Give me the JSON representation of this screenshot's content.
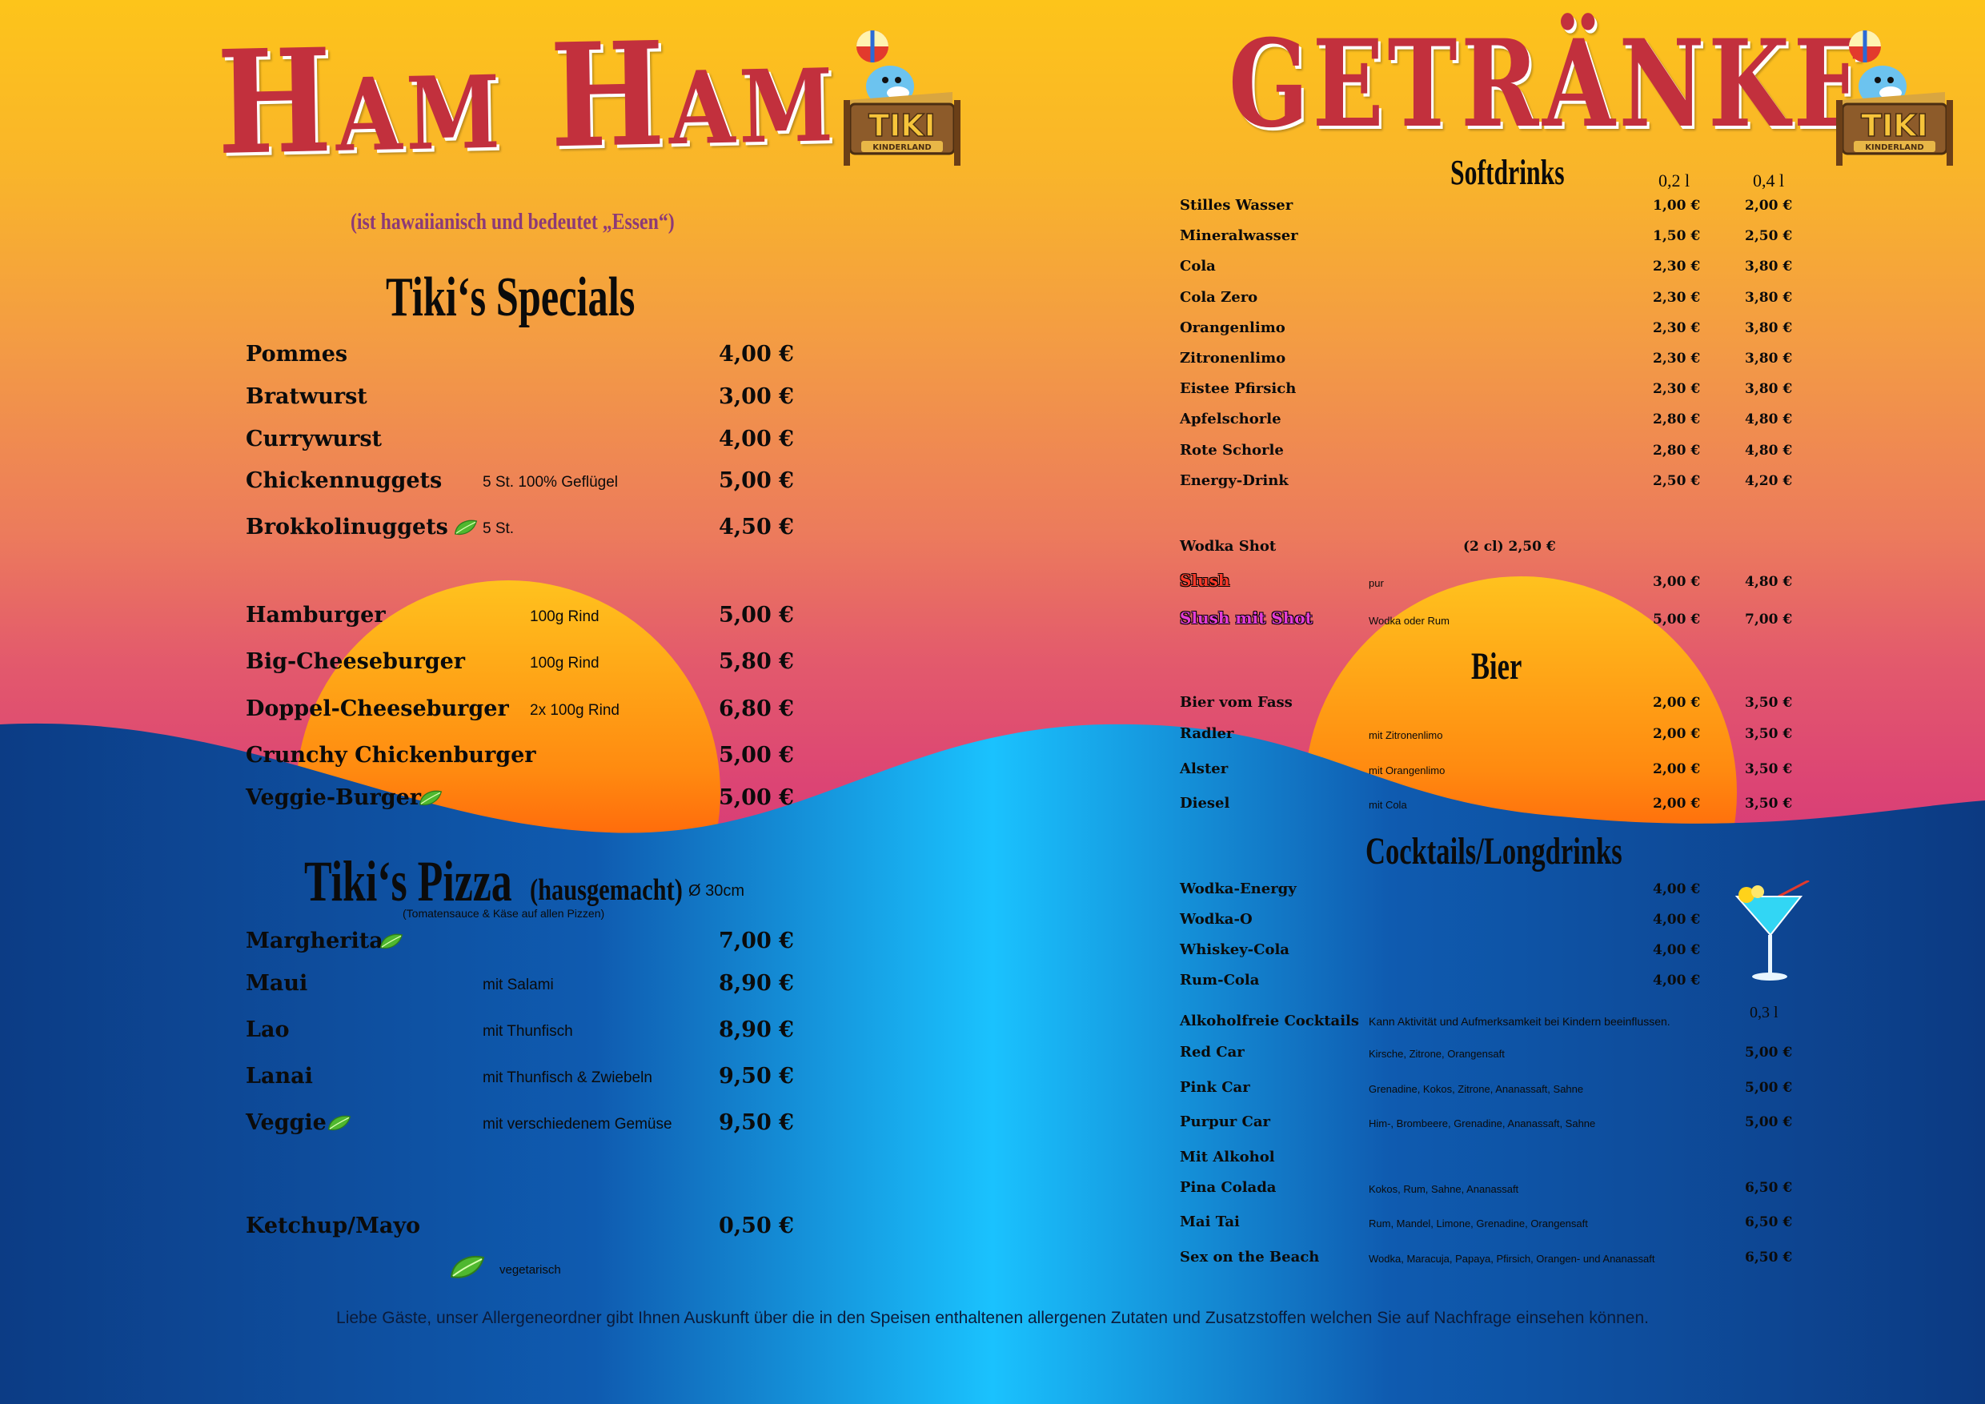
{
  "left": {
    "title": "Ham Ham",
    "subtitle": "(ist hawaiianisch und bedeutet „Essen“)",
    "specials_title": "Tiki‘s Specials",
    "specials": [
      {
        "name": "Pommes",
        "desc": "",
        "price": "4,00 €"
      },
      {
        "name": "Bratwurst",
        "desc": "",
        "price": "3,00 €"
      },
      {
        "name": "Currywurst",
        "desc": "",
        "price": "4,00 €"
      },
      {
        "name": "Chickennuggets",
        "desc": "5 St. 100% Geflügel",
        "price": "5,00 €"
      },
      {
        "name": "Brokkolinuggets",
        "desc": "5 St.",
        "price": "4,50 €"
      }
    ],
    "burgers": [
      {
        "name": "Hamburger",
        "desc": "100g Rind",
        "price": "5,00 €"
      },
      {
        "name": "Big-Cheeseburger",
        "desc": "100g Rind",
        "price": "5,80 €"
      },
      {
        "name": "Doppel-Cheeseburger",
        "desc": "2x 100g Rind",
        "price": "6,80 €"
      },
      {
        "name": "Crunchy Chickenburger",
        "desc": "",
        "price": "5,00 €"
      },
      {
        "name": "Veggie-Burger",
        "desc": "",
        "price": "5,00 €"
      }
    ],
    "pizza_title": "Tiki‘s Pizza",
    "pizza_title_suffix": "(hausgemacht)",
    "pizza_size": "Ø 30cm",
    "pizza_note": "(Tomatensauce & Käse auf allen Pizzen)",
    "pizzas": [
      {
        "name": "Margherita",
        "desc": "",
        "price": "7,00 €"
      },
      {
        "name": "Maui",
        "desc": "mit Salami",
        "price": "8,90 €"
      },
      {
        "name": "Lao",
        "desc": "mit Thunfisch",
        "price": "8,90 €"
      },
      {
        "name": "Lanai",
        "desc": "mit Thunfisch  & Zwiebeln",
        "price": "9,50 €"
      },
      {
        "name": "Veggie",
        "desc": "mit verschiedenem Gemüse",
        "price": "9,50 €"
      }
    ],
    "extra": {
      "name": "Ketchup/Mayo",
      "price": "0,50 €"
    },
    "legend_label": "vegetarisch"
  },
  "right": {
    "title": "Getränke",
    "softdrinks_title": "Softdrinks",
    "col_small": "0,2 l",
    "col_large": "0,4 l",
    "softdrinks": [
      {
        "name": "Stilles Wasser",
        "p1": "1,00 €",
        "p2": "2,00 €"
      },
      {
        "name": "Mineralwasser",
        "p1": "1,50 €",
        "p2": "2,50 €"
      },
      {
        "name": "Cola",
        "p1": "2,30 €",
        "p2": "3,80 €"
      },
      {
        "name": "Cola Zero",
        "p1": "2,30 €",
        "p2": "3,80 €"
      },
      {
        "name": "Orangenlimo",
        "p1": "2,30 €",
        "p2": "3,80 €"
      },
      {
        "name": "Zitronenlimo",
        "p1": "2,30 €",
        "p2": "3,80 €"
      },
      {
        "name": "Eistee Pfirsich",
        "p1": "2,30 €",
        "p2": "3,80 €"
      },
      {
        "name": "Apfelschorle",
        "p1": "2,80 €",
        "p2": "4,80 €"
      },
      {
        "name": "Rote Schorle",
        "p1": "2,80 €",
        "p2": "4,80 €"
      },
      {
        "name": "Energy-Drink",
        "p1": "2,50 €",
        "p2": "4,20 €"
      }
    ],
    "wodka_shot": {
      "name": "Wodka Shot",
      "price": "(2 cl) 2,50 €"
    },
    "slush": {
      "name": "Slush",
      "desc": "pur",
      "p1": "3,00 €",
      "p2": "4,80 €"
    },
    "slush_shot": {
      "name": "Slush mit Shot",
      "desc": "Wodka oder Rum",
      "p1": "5,00 €",
      "p2": "7,00 €"
    },
    "bier_title": "Bier",
    "biers": [
      {
        "name": "Bier vom Fass",
        "desc": "",
        "p1": "2,00 €",
        "p2": "3,50 €"
      },
      {
        "name": "Radler",
        "desc": "mit Zitronenlimo",
        "p1": "2,00 €",
        "p2": "3,50 €"
      },
      {
        "name": "Alster",
        "desc": "mit Orangenlimo",
        "p1": "2,00 €",
        "p2": "3,50 €"
      },
      {
        "name": "Diesel",
        "desc": "mit Cola",
        "p1": "2,00 €",
        "p2": "3,50 €"
      }
    ],
    "cocktails_title": "Cocktails/Longdrinks",
    "longdrinks": [
      {
        "name": "Wodka-Energy",
        "price": "4,00 €"
      },
      {
        "name": "Wodka-O",
        "price": "4,00 €"
      },
      {
        "name": "Whiskey-Cola",
        "price": "4,00 €"
      },
      {
        "name": "Rum-Cola",
        "price": "4,00 €"
      }
    ],
    "alkoholfrei_title": "Alkoholfreie Cocktails",
    "alkoholfrei_warning": "Kann Aktivität und Aufmerksamkeit bei Kindern beeinflussen.",
    "col_cocktail": "0,3 l",
    "alkoholfrei": [
      {
        "name": "Red Car",
        "desc": "Kirsche, Zitrone, Orangensaft",
        "price": "5,00 €"
      },
      {
        "name": "Pink Car",
        "desc": "Grenadine, Kokos, Zitrone, Ananassaft, Sahne",
        "price": "5,00 €"
      },
      {
        "name": "Purpur Car",
        "desc": "Him-, Brombeere, Grenadine, Ananassaft, Sahne",
        "price": "5,00 €"
      }
    ],
    "mit_alkohol_title": "Mit Alkohol",
    "mit_alkohol": [
      {
        "name": "Pina Colada",
        "desc": "Kokos, Rum, Sahne, Ananassaft",
        "price": "6,50 €"
      },
      {
        "name": "Mai Tai",
        "desc": "Rum, Mandel, Limone, Grenadine, Orangensaft",
        "price": "6,50 €"
      },
      {
        "name": "Sex on the Beach",
        "desc": "Wodka, Maracuja, Papaya, Pfirsich, Orangen-  und Ananassaft",
        "price": "6,50 €"
      }
    ]
  },
  "logo_text": "TIKI",
  "logo_sub": "KINDERLAND",
  "footer": "Liebe Gäste, unser Allergeneordner gibt Ihnen Auskunft über die in den Speisen enthaltenen allergenen Zutaten und Zusatzstoffen welchen Sie auf Nachfrage einsehen können.",
  "colors": {
    "title_red": "#c2303d",
    "sea_dark": "#0d3f8a",
    "sea_light": "#19c3ff",
    "sun": "#ff5a00"
  }
}
